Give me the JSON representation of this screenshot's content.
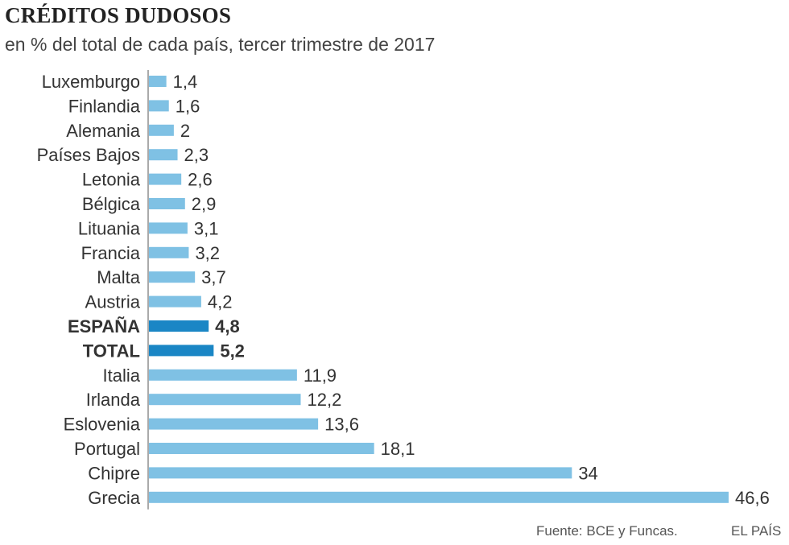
{
  "header": {
    "title": "CRÉDITOS DUDOSOS",
    "subtitle": "en % del total de cada país, tercer trimestre de 2017"
  },
  "footer": {
    "source": "Fuente: BCE y Funcas.",
    "brand": "EL PAÍS"
  },
  "colors": {
    "bar": "#7fc1e4",
    "highlight": "#1a86c5",
    "text": "#333333"
  },
  "chart_data": {
    "type": "bar",
    "orientation": "horizontal",
    "categories": [
      "Luxemburgo",
      "Finlandia",
      "Alemania",
      "Países Bajos",
      "Letonia",
      "Bélgica",
      "Lituania",
      "Francia",
      "Malta",
      "Austria",
      "ESPAÑA",
      "TOTAL",
      "Italia",
      "Irlanda",
      "Eslovenia",
      "Portugal",
      "Chipre",
      "Grecia"
    ],
    "values": [
      1.4,
      1.6,
      2,
      2.3,
      2.6,
      2.9,
      3.1,
      3.2,
      3.7,
      4.2,
      4.8,
      5.2,
      11.9,
      12.2,
      13.6,
      18.1,
      34,
      46.6
    ],
    "value_labels": [
      "1,4",
      "1,6",
      "2",
      "2,3",
      "2,6",
      "2,9",
      "3,1",
      "3,2",
      "3,7",
      "4,2",
      "4,8",
      "5,2",
      "11,9",
      "12,2",
      "13,6",
      "18,1",
      "34",
      "46,6"
    ],
    "highlighted": [
      "ESPAÑA",
      "TOTAL"
    ],
    "xlim": [
      0,
      46.6
    ],
    "grid": false,
    "legend": "none"
  }
}
